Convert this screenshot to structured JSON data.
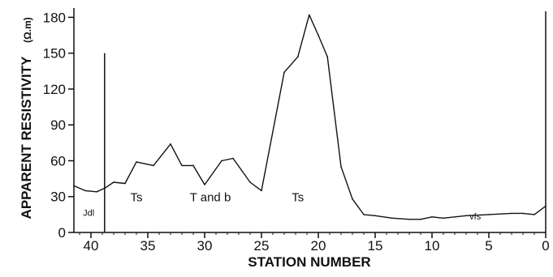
{
  "chart_data": {
    "type": "line",
    "title": "",
    "xlabel": "STATION NUMBER",
    "ylabel": "APPARENT RESISTIVITY",
    "yunit": "(Ω.m)",
    "xlim": [
      41.5,
      0
    ],
    "ylim": [
      0,
      185
    ],
    "xticks": [
      40,
      35,
      30,
      25,
      20,
      15,
      10,
      5,
      0
    ],
    "yticks": [
      0,
      30,
      60,
      90,
      120,
      150,
      180
    ],
    "grid": false,
    "series": [
      {
        "x": [
          41.5,
          40.5,
          39.5,
          38.8,
          38,
          37,
          36,
          34.5,
          33,
          32,
          31,
          30,
          28.5,
          27.5,
          26,
          25,
          23,
          21.8,
          20.8,
          20,
          19.2,
          18,
          17,
          16,
          15,
          13.5,
          12,
          11,
          10,
          9,
          7,
          5,
          3,
          2,
          1,
          0
        ],
        "y": [
          39,
          35,
          34,
          37,
          42,
          41,
          59,
          56,
          74,
          56,
          56,
          40,
          60,
          62,
          42,
          35,
          134,
          147,
          182,
          165,
          147,
          55,
          28,
          15,
          14,
          12,
          11,
          11,
          13,
          12,
          14,
          15,
          16,
          16,
          15,
          22
        ]
      }
    ],
    "annotations": [
      {
        "text": "Jdl",
        "x": 40.2,
        "y": 14
      },
      {
        "text": "Ts",
        "x": 36,
        "y": 26
      },
      {
        "text": "T and b",
        "x": 29.5,
        "y": 26
      },
      {
        "text": "Ts",
        "x": 21.8,
        "y": 26
      },
      {
        "text": "vfs",
        "x": 6.2,
        "y": 11
      }
    ],
    "boundaries": [
      {
        "x": 38.8,
        "y_top": 150
      },
      {
        "x": 0,
        "y_top": 185
      }
    ]
  }
}
